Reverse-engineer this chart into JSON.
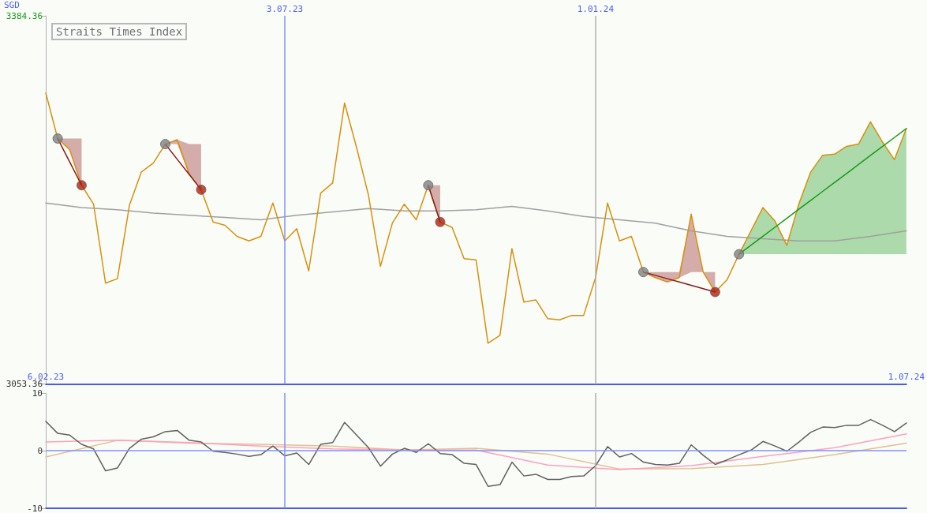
{
  "chart_data": [
    {
      "type": "line",
      "title": "Straits Times Index",
      "ylabel": "SGD",
      "x": [
        "2023-02-13",
        "2023-02-20",
        "2023-02-27",
        "2023-03-06",
        "2023-03-13",
        "2023-03-20",
        "2023-03-27",
        "2023-04-03",
        "2023-04-10",
        "2023-04-17",
        "2023-04-24",
        "2023-05-01",
        "2023-05-08",
        "2023-05-15",
        "2023-05-22",
        "2023-05-29",
        "2023-06-05",
        "2023-06-12",
        "2023-06-19",
        "2023-06-26",
        "2023-07-03",
        "2023-07-10",
        "2023-07-17",
        "2023-07-24",
        "2023-07-31",
        "2023-08-07",
        "2023-08-14",
        "2023-08-21",
        "2023-08-28",
        "2023-09-04",
        "2023-09-11",
        "2023-09-18",
        "2023-09-25",
        "2023-10-02",
        "2023-10-09",
        "2023-10-16",
        "2023-10-23",
        "2023-10-30",
        "2023-11-06",
        "2023-11-13",
        "2023-11-20",
        "2023-11-27",
        "2023-12-04",
        "2023-12-11",
        "2023-12-18",
        "2023-12-25",
        "2024-01-01",
        "2024-01-08",
        "2024-01-15",
        "2024-01-22",
        "2024-01-29",
        "2024-02-05",
        "2024-02-12",
        "2024-02-19",
        "2024-02-26",
        "2024-03-04",
        "2024-03-11",
        "2024-03-18",
        "2024-03-25",
        "2024-04-01",
        "2024-04-08",
        "2024-04-15",
        "2024-04-22",
        "2024-04-29",
        "2024-05-06",
        "2024-05-13",
        "2024-05-20",
        "2024-05-27",
        "2024-06-03",
        "2024-06-10",
        "2024-06-17",
        "2024-06-24",
        "2024-07-01"
      ],
      "series": [
        {
          "color": "#a0a0a0",
          "x": [
            "2023-02-13",
            "2023-03-06",
            "2023-03-27",
            "2023-04-17",
            "2023-05-08",
            "2023-05-29",
            "2023-06-19",
            "2023-07-10",
            "2023-07-31",
            "2023-08-21",
            "2023-09-11",
            "2023-10-02",
            "2023-10-23",
            "2023-11-13",
            "2023-12-04",
            "2023-12-25",
            "2024-01-15",
            "2024-02-05",
            "2024-02-26",
            "2024-03-18",
            "2024-04-08",
            "2024-04-29",
            "2024-05-20",
            "2024-06-10",
            "2024-07-01"
          ],
          "values": [
            3216,
            3212,
            3210,
            3207,
            3205,
            3203,
            3201,
            3205,
            3208,
            3211,
            3209,
            3209,
            3210,
            3213,
            3209,
            3204,
            3201,
            3198,
            3191,
            3186,
            3184,
            3182,
            3182,
            3186,
            3191
          ]
        },
        {
          "color": "#d8900c",
          "values": [
            3315,
            3274,
            3264,
            3232,
            3215,
            3144,
            3148,
            3214,
            3244,
            3252,
            3269,
            3273,
            3242,
            3228,
            3199,
            3196,
            3186,
            3182,
            3186,
            3216,
            3182,
            3193,
            3155,
            3225,
            3234,
            3306,
            3266,
            3223,
            3159,
            3198,
            3215,
            3201,
            3232,
            3199,
            3194,
            3166,
            3165,
            3090,
            3097,
            3175,
            3127,
            3129,
            3112,
            3111,
            3115,
            3115,
            3149,
            3216,
            3182,
            3186,
            3154,
            3149,
            3145,
            3149,
            3206,
            3154,
            3136,
            3147,
            3170,
            3191,
            3212,
            3200,
            3178,
            3215,
            3244,
            3259,
            3260,
            3267,
            3269,
            3289,
            3271,
            3255,
            3283
          ]
        },
        {
          "color": "#8b1a1a",
          "x": [
            "2023-02-20",
            "2023-02-27",
            "2023-03-06",
            "2023-03-13",
            "2023-04-24",
            "2023-05-01",
            "2023-05-08",
            "2023-05-15",
            "2023-05-22",
            "2023-09-25",
            "2023-10-02",
            "2023-10-09",
            "2024-01-29",
            "2024-02-05",
            "2024-02-12",
            "2024-02-19",
            "2024-02-26",
            "2024-03-04",
            "2024-03-11"
          ],
          "values": [
            3274,
            3253,
            3232,
            null,
            3269,
            3255.3,
            3241.7,
            3228,
            null,
            3232,
            3199,
            null,
            3154,
            3151,
            3148,
            3145,
            3142,
            3139,
            3136
          ],
          "lower": [
            3274,
            3264,
            3232,
            null,
            3269,
            3269,
            3242,
            3228,
            null,
            3232,
            3199,
            null,
            3154,
            3149,
            3145,
            3149,
            3154,
            3154,
            3136
          ],
          "upper": [
            3274,
            3274,
            3274,
            null,
            3269,
            3273,
            3269,
            3269,
            null,
            3232,
            3232,
            null,
            3154,
            3154,
            3154,
            3154,
            3206,
            3154,
            3154
          ]
        },
        {
          "color": "#1a9a1a",
          "x": [
            "2024-03-25",
            "2024-04-01",
            "2024-04-08",
            "2024-04-15",
            "2024-04-22",
            "2024-04-29",
            "2024-05-06",
            "2024-05-13",
            "2024-05-20",
            "2024-05-27",
            "2024-06-03",
            "2024-06-10",
            "2024-06-17",
            "2024-06-24",
            "2024-07-01"
          ],
          "values": [
            3170,
            3178.1,
            3186.1,
            3194.2,
            3202.3,
            3210.4,
            3218.4,
            3226.5,
            3234.6,
            3242.6,
            3250.7,
            3258.8,
            3266.9,
            3274.9,
            3283
          ],
          "lower": [
            3170,
            3170,
            3170,
            3170,
            3170,
            3170,
            3170,
            3170,
            3170,
            3170,
            3170,
            3170,
            3170,
            3170,
            3170
          ],
          "upper": [
            3170,
            3191,
            3212,
            3200,
            3178,
            3215,
            3244,
            3259,
            3260,
            3267,
            3269,
            3289,
            3271,
            3255,
            3283
          ]
        },
        {
          "type": "scatter",
          "marker": "circle",
          "color": "#808080",
          "x": [
            "2023-02-20",
            "2023-04-24",
            "2023-09-25",
            "2024-01-29",
            "2024-03-25"
          ],
          "values": [
            3274,
            3269,
            3232,
            3154,
            3170
          ]
        },
        {
          "type": "scatter",
          "marker": "circle",
          "color": "#b02010",
          "x": [
            "2023-03-06",
            "2023-05-15",
            "2023-10-02",
            "2024-03-11"
          ],
          "values": [
            3232,
            3228,
            3199,
            3136
          ]
        }
      ],
      "xlim": [
        "2023-02-13",
        "2024-07-01"
      ],
      "xticks": [
        {
          "value": "2023-02-13",
          "label": "6.02.23"
        },
        {
          "value": "2024-07-01",
          "label": "1.07.24"
        }
      ],
      "x2lim": [
        "2023-02-13",
        "2024-07-01"
      ],
      "x2ticks": [
        {
          "value": "2023-07-03",
          "label": "3.07.23"
        },
        {
          "value": "2024-01-01",
          "label": "1.01.24"
        }
      ],
      "ylim": [
        3053.36,
        3384.36
      ],
      "yticks": [
        3053.36,
        3384.36
      ],
      "ref_lines": [
        {
          "axis": "x",
          "value": "2023-07-03",
          "label": null,
          "color": "#8090ff"
        },
        {
          "axis": "x",
          "value": "2024-01-01",
          "label": null,
          "color": "#b0b0b0"
        }
      ],
      "marker": "none",
      "line_style": "solid"
    },
    {
      "type": "line",
      "x": [
        "2023-02-13",
        "2023-02-20",
        "2023-02-27",
        "2023-03-06",
        "2023-03-13",
        "2023-03-20",
        "2023-03-27",
        "2023-04-03",
        "2023-04-10",
        "2023-04-17",
        "2023-04-24",
        "2023-05-01",
        "2023-05-08",
        "2023-05-15",
        "2023-05-22",
        "2023-05-29",
        "2023-06-05",
        "2023-06-12",
        "2023-06-19",
        "2023-06-26",
        "2023-07-03",
        "2023-07-10",
        "2023-07-17",
        "2023-07-24",
        "2023-07-31",
        "2023-08-07",
        "2023-08-14",
        "2023-08-21",
        "2023-08-28",
        "2023-09-04",
        "2023-09-11",
        "2023-09-18",
        "2023-09-25",
        "2023-10-02",
        "2023-10-09",
        "2023-10-16",
        "2023-10-23",
        "2023-10-30",
        "2023-11-06",
        "2023-11-13",
        "2023-11-20",
        "2023-11-27",
        "2023-12-04",
        "2023-12-11",
        "2023-12-18",
        "2023-12-25",
        "2024-01-01",
        "2024-01-08",
        "2024-01-15",
        "2024-01-22",
        "2024-01-29",
        "2024-02-05",
        "2024-02-12",
        "2024-02-19",
        "2024-02-26",
        "2024-03-04",
        "2024-03-11",
        "2024-03-18",
        "2024-03-25",
        "2024-04-01",
        "2024-04-08",
        "2024-04-15",
        "2024-04-22",
        "2024-04-29",
        "2024-05-06",
        "2024-05-13",
        "2024-05-20",
        "2024-05-27",
        "2024-06-03",
        "2024-06-10",
        "2024-06-17",
        "2024-06-24",
        "2024-07-01"
      ],
      "series": [
        {
          "color": "#e0c090",
          "x": [
            "2023-02-13",
            "2023-03-27",
            "2023-05-08",
            "2023-06-19",
            "2023-07-31",
            "2023-09-11",
            "2023-10-23",
            "2023-12-04",
            "2024-01-15",
            "2024-02-26",
            "2024-04-08",
            "2024-05-20",
            "2024-07-01"
          ],
          "values": [
            -1.1,
            1.8,
            1.3,
            1.1,
            0.8,
            0.1,
            0.4,
            -0.6,
            -3.2,
            -3.1,
            -2.4,
            -0.7,
            1.3
          ]
        },
        {
          "color": "#ffa0c0",
          "x": [
            "2023-02-13",
            "2023-03-27",
            "2023-05-08",
            "2023-06-19",
            "2023-07-31",
            "2023-09-11",
            "2023-10-23",
            "2023-12-04",
            "2024-01-15",
            "2024-02-26",
            "2024-04-08",
            "2024-05-20",
            "2024-07-01"
          ],
          "values": [
            1.5,
            1.8,
            1.4,
            0.8,
            0.3,
            0.1,
            0.1,
            -2.5,
            -3.3,
            -2.6,
            -1.0,
            0.5,
            2.9
          ]
        },
        {
          "color": "#606060",
          "values": [
            5.1,
            3.0,
            2.7,
            1.1,
            0.3,
            -3.5,
            -3.0,
            0.4,
            2.0,
            2.4,
            3.3,
            3.5,
            1.8,
            1.5,
            -0.1,
            -0.3,
            -0.6,
            -1.0,
            -0.7,
            0.8,
            -0.9,
            -0.4,
            -2.4,
            1.1,
            1.4,
            4.9,
            2.7,
            0.5,
            -2.7,
            -0.6,
            0.4,
            -0.3,
            1.2,
            -0.5,
            -0.7,
            -2.2,
            -2.4,
            -6.2,
            -5.9,
            -2.0,
            -4.4,
            -4.1,
            -5.0,
            -5.0,
            -4.5,
            -4.4,
            -2.6,
            0.7,
            -1.1,
            -0.5,
            -2.0,
            -2.4,
            -2.5,
            -2.2,
            1.0,
            -0.8,
            -2.4,
            -1.6,
            -0.7,
            0.1,
            1.6,
            0.8,
            -0.1,
            1.5,
            3.2,
            4.1,
            4.0,
            4.4,
            4.4,
            5.4,
            4.4,
            3.3,
            4.8
          ]
        }
      ],
      "xlim": [
        "2023-02-13",
        "2024-07-01"
      ],
      "ylim": [
        -10,
        10
      ],
      "yticks": [
        -10,
        0,
        10
      ],
      "ref_lines": [
        {
          "axis": "y",
          "value": 0,
          "label": null,
          "color": "#8090ff"
        },
        {
          "axis": "x",
          "value": "2023-07-03",
          "label": null,
          "color": "#8090ff"
        },
        {
          "axis": "x",
          "value": "2024-01-01",
          "label": null,
          "color": "#b0b0b0"
        }
      ],
      "tick_labels": "y",
      "marker": "none",
      "line_style": "solid"
    }
  ]
}
